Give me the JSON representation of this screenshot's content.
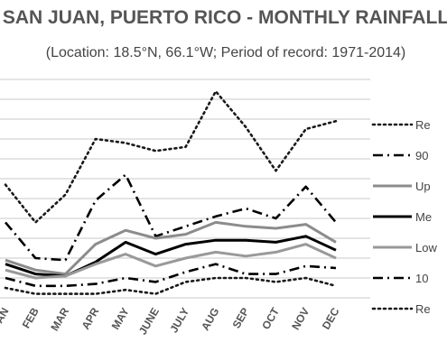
{
  "chart_data": {
    "type": "line",
    "title": "SAN JUAN, PUERTO RICO - MONTHLY RAINFALL",
    "subtitle": "(Location: 18.5°N, 66.1°W; Period of record: 1971-2014)",
    "xlabel": "",
    "ylabel": "",
    "categories": [
      "JAN",
      "FEB",
      "MAR",
      "APR",
      "MAY",
      "JUNE",
      "JULY",
      "AUG",
      "SEP",
      "OCT",
      "NOV",
      "DEC"
    ],
    "ylim": [
      0,
      11
    ],
    "grid": true,
    "legend_position": "right",
    "series": [
      {
        "name": "Re",
        "style": "dotted",
        "color": "#1a1a1a",
        "values": [
          5.7,
          3.8,
          5.2,
          8.0,
          7.8,
          7.4,
          7.6,
          10.4,
          8.6,
          6.4,
          8.5,
          8.9
        ]
      },
      {
        "name": "90",
        "style": "dashdot",
        "color": "#000000",
        "values": [
          3.8,
          2.0,
          1.9,
          4.9,
          6.2,
          3.1,
          3.6,
          4.1,
          4.5,
          4.0,
          5.6,
          3.8
        ]
      },
      {
        "name": "Up",
        "style": "solid",
        "color": "#8c8c8c",
        "values": [
          1.9,
          1.4,
          1.2,
          2.7,
          3.4,
          3.0,
          3.2,
          3.8,
          3.6,
          3.5,
          3.7,
          2.8
        ]
      },
      {
        "name": "Me",
        "style": "solid",
        "color": "#000000",
        "values": [
          1.7,
          1.2,
          1.1,
          1.8,
          2.8,
          2.2,
          2.7,
          2.9,
          2.9,
          2.8,
          3.1,
          2.4
        ]
      },
      {
        "name": "Low",
        "style": "solid",
        "color": "#999999",
        "values": [
          1.4,
          1.0,
          1.1,
          1.7,
          2.2,
          1.6,
          2.0,
          2.3,
          2.1,
          2.3,
          2.7,
          2.0
        ]
      },
      {
        "name": "10",
        "style": "dashdot",
        "color": "#000000",
        "values": [
          1.0,
          0.6,
          0.6,
          0.7,
          1.0,
          0.8,
          1.3,
          1.7,
          1.2,
          1.2,
          1.6,
          1.5
        ]
      },
      {
        "name": "Re",
        "style": "dotted",
        "color": "#1a1a1a",
        "values": [
          0.5,
          0.2,
          0.2,
          0.2,
          0.4,
          0.2,
          0.8,
          1.0,
          1.0,
          0.8,
          1.0,
          0.6
        ]
      }
    ]
  }
}
